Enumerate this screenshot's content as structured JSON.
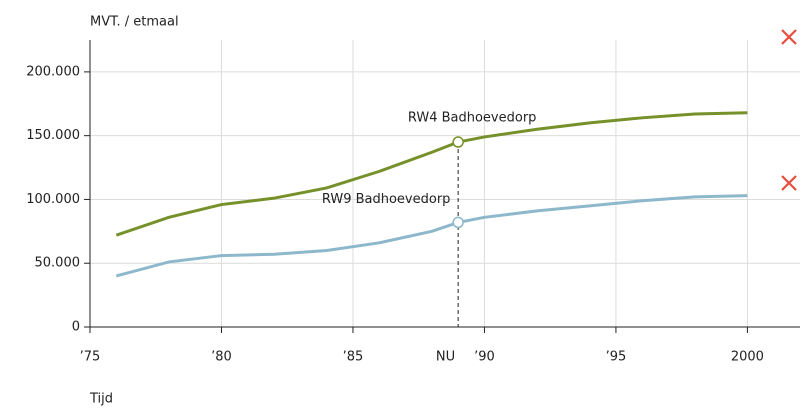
{
  "chart_data": {
    "type": "line",
    "y_label": "MVT. / etmaal",
    "x_label": "Tijd",
    "x": [
      1976,
      1978,
      1980,
      1982,
      1984,
      1986,
      1988,
      1989,
      1990,
      1992,
      1994,
      1996,
      1998,
      2000
    ],
    "series": [
      {
        "name": "RW4 Badhoevedorp",
        "color": "#76902a",
        "values": [
          72000,
          86000,
          96000,
          101000,
          109000,
          122000,
          137000,
          145000,
          149000,
          155000,
          160000,
          164000,
          167000,
          168000
        ]
      },
      {
        "name": "RW9 Badhoevedorp",
        "color": "#8db8cc",
        "values": [
          40000,
          51000,
          56000,
          57000,
          60000,
          66000,
          75000,
          82000,
          86000,
          91000,
          95000,
          99000,
          102000,
          103000
        ]
      }
    ],
    "now": {
      "x": 1989,
      "label": "NU"
    },
    "xlim": [
      1975,
      2002
    ],
    "ylim": [
      0,
      225000
    ],
    "xticks": [
      {
        "value": 1975,
        "label": "’75"
      },
      {
        "value": 1980,
        "label": "’80"
      },
      {
        "value": 1985,
        "label": "’85"
      },
      {
        "value": 1990,
        "label": "’90"
      },
      {
        "value": 1995,
        "label": "’95"
      },
      2000
    ],
    "yticks": [
      0,
      {
        "value": 50000,
        "label": "50.000"
      },
      {
        "value": 100000,
        "label": "100.000"
      },
      {
        "value": 150000,
        "label": "150.000"
      },
      {
        "value": 200000,
        "label": "200.000"
      }
    ],
    "grid": true
  }
}
